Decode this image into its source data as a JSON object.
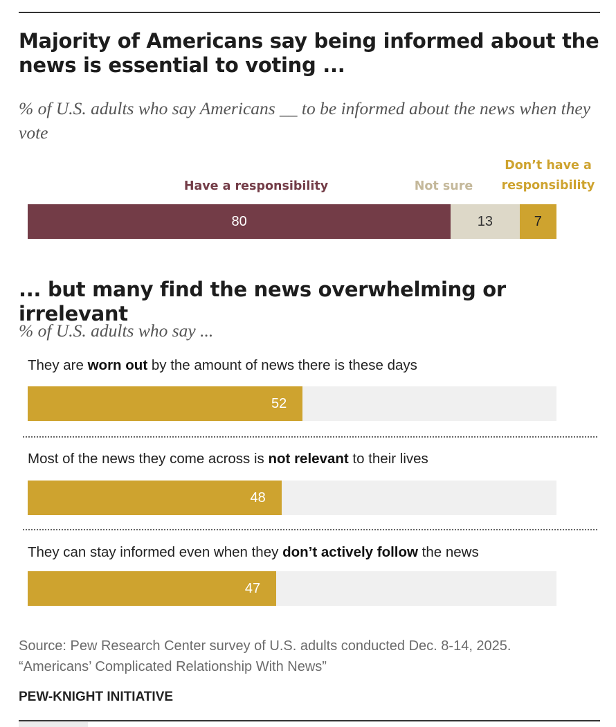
{
  "title1": "Majority of Americans say being informed about the news is essential to voting ...",
  "subtitle1": "% of U.S. adults who say Americans __ to be informed about the news when they vote",
  "title2": "... but many find the news overwhelming or irrelevant",
  "subtitle2": "% of U.S. adults who say ...",
  "colors": {
    "responsibility": "#733c47",
    "not_sure": "#ddd8c8",
    "not_responsibility": "#cea32f",
    "track": "#f0f0f0",
    "not_sure_label": "#c4b89a"
  },
  "chart_data": [
    {
      "type": "bar",
      "orientation": "horizontal",
      "stacked": true,
      "title": "Majority of Americans say being informed about the news is essential to voting ...",
      "subtitle": "% of U.S. adults who say Americans __ to be informed about the news when they vote",
      "series": [
        {
          "name": "Have a responsibility",
          "values": [
            80
          ]
        },
        {
          "name": "Not sure",
          "values": [
            13
          ]
        },
        {
          "name": "Don’t have a responsibility",
          "values": [
            7
          ]
        }
      ],
      "xlim": [
        0,
        100
      ],
      "legend": "labels above segments",
      "grid": false
    },
    {
      "type": "bar",
      "orientation": "horizontal",
      "title": "... but many find the news overwhelming or irrelevant",
      "subtitle": "% of U.S. adults who say ...",
      "categories": [
        {
          "before": "They are ",
          "bold": "worn out",
          "after": " by the amount of news there is these days"
        },
        {
          "before": "Most of the news they come across is ",
          "bold": "not relevant",
          "after": " to their lives"
        },
        {
          "before": "They can stay informed even when they ",
          "bold": "don’t actively follow",
          "after": " the news"
        }
      ],
      "values": [
        52,
        48,
        47
      ],
      "xlim": [
        0,
        100
      ],
      "grid": false
    }
  ],
  "source_lines": [
    "Source: Pew Research Center survey of U.S. adults conducted Dec. 8-14, 2025.",
    "“Americans’ Complicated Relationship With News”"
  ],
  "footer": "PEW-KNIGHT INITIATIVE"
}
